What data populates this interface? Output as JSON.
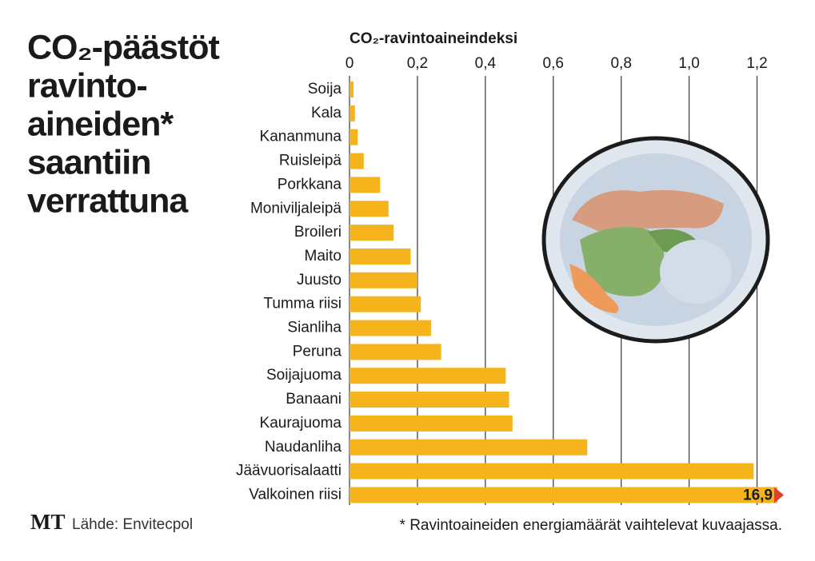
{
  "chart_data": {
    "type": "bar",
    "orientation": "horizontal",
    "title": [
      "CO₂-päästöt",
      "ravinto-",
      "aineiden*",
      "saantiin",
      "verrattuna"
    ],
    "x_label": "CO₂-ravintoaineindeksi",
    "categories": [
      "Soija",
      "Kala",
      "Kananmuna",
      "Ruisleipä",
      "Porkkana",
      "Moniviljaleipä",
      "Broileri",
      "Maito",
      "Juusto",
      "Tumma riisi",
      "Sianliha",
      "Peruna",
      "Soijajuoma",
      "Banaani",
      "Kaurajuoma",
      "Naudanliha",
      "Jäävuorisalaatti",
      "Valkoinen riisi"
    ],
    "values": [
      0.012,
      0.016,
      0.024,
      0.042,
      0.09,
      0.115,
      0.13,
      0.18,
      0.2,
      0.21,
      0.24,
      0.27,
      0.46,
      0.47,
      0.48,
      0.7,
      1.19,
      16.9
    ],
    "value_labels": [
      null,
      null,
      null,
      null,
      null,
      null,
      null,
      null,
      null,
      null,
      null,
      null,
      null,
      null,
      null,
      null,
      null,
      "16,9"
    ],
    "color": "#f6b41c",
    "break_color": "#d8432a",
    "xlim": [
      0,
      1.26
    ],
    "xticks": [
      0,
      {
        "value": 0.2,
        "label": "0,2"
      },
      {
        "value": 0.4,
        "label": "0,4"
      },
      {
        "value": 0.6,
        "label": "0,6"
      },
      {
        "value": 0.8,
        "label": "0,8"
      },
      {
        "value": 1.0,
        "label": "1,0"
      },
      {
        "value": 1.2,
        "label": "1,2"
      }
    ],
    "grid": true,
    "logo": "MT",
    "source": "Lähde: Envitecpol",
    "footnote": "* Ravintoaineiden energiamäärät vaihtelevat kuvaajassa."
  }
}
